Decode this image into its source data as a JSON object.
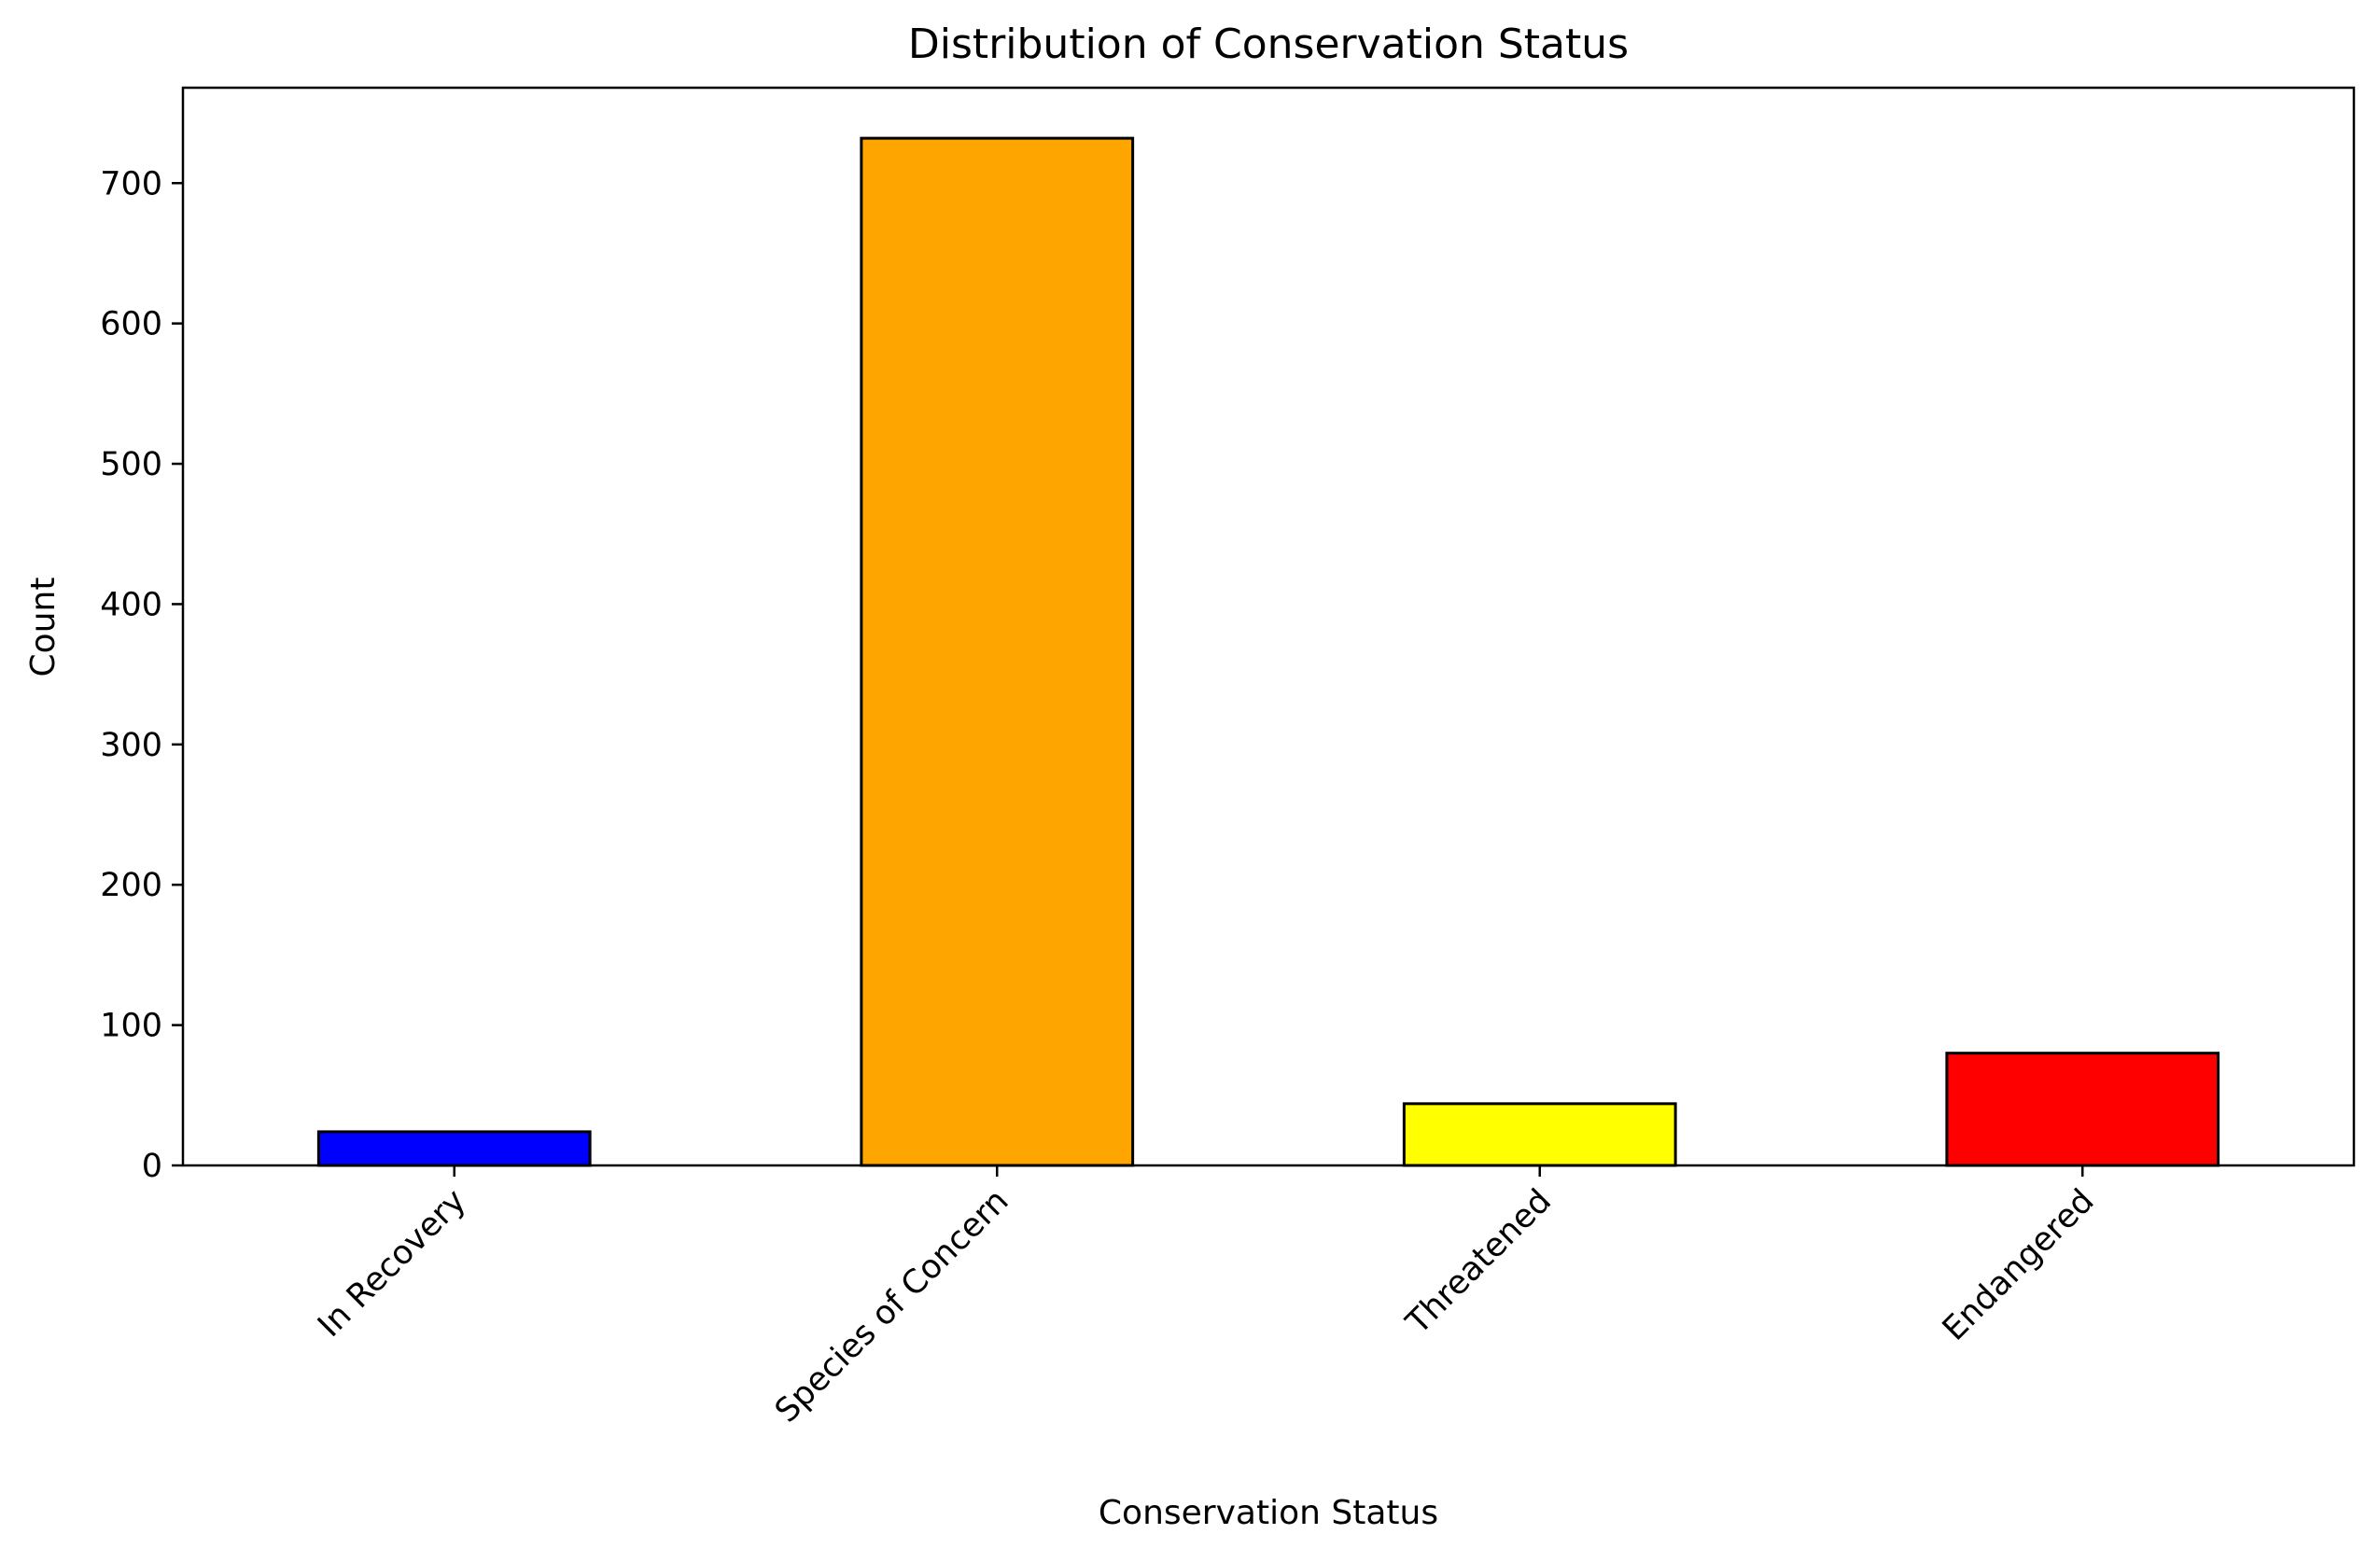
{
  "chart_data": {
    "type": "bar",
    "title": "Distribution of Conservation Status",
    "xlabel": "Conservation Status",
    "ylabel": "Count",
    "categories": [
      "In Recovery",
      "Species of Concern",
      "Threatened",
      "Endangered"
    ],
    "values": [
      24,
      732,
      44,
      80
    ],
    "colors": [
      "#0000ff",
      "#ffa500",
      "#ffff00",
      "#ff0000"
    ],
    "edge_color": "#000000",
    "ylim": [
      0,
      768
    ],
    "yticks": [
      0,
      100,
      200,
      300,
      400,
      500,
      600,
      700
    ],
    "ytick_labels": [
      "0",
      "100",
      "200",
      "300",
      "400",
      "500",
      "600",
      "700"
    ],
    "xtick_rotation_deg": 45,
    "grid": false,
    "legend": "none"
  }
}
